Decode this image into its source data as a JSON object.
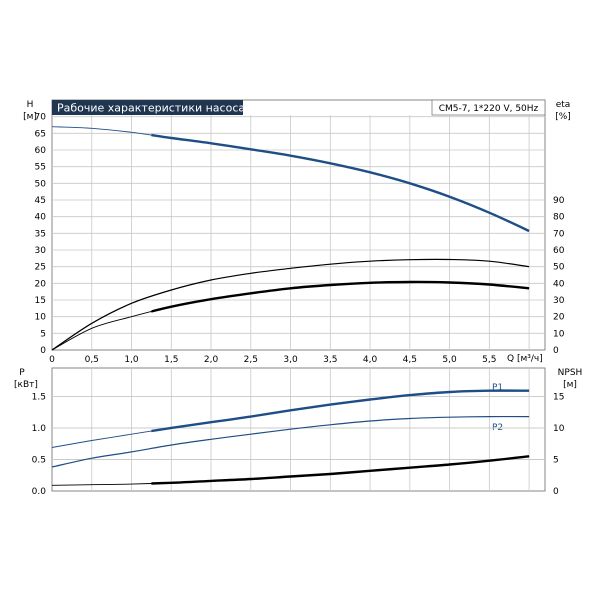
{
  "colors": {
    "blue": "#1f4e87",
    "black": "#000000",
    "title_bg": "#1f3550",
    "grid": "#c8c8c8"
  },
  "header": {
    "title": "Рабочие характеристики насоса",
    "pump_info": "CM5-7, 1*220 V, 50Hz"
  },
  "chart_data": [
    {
      "type": "line",
      "panel": "top",
      "left_axis": {
        "label": "H",
        "unit": "[м]",
        "range": [
          0,
          75
        ],
        "ticks": [
          "0",
          "5",
          "10",
          "15",
          "20",
          "25",
          "30",
          "35",
          "40",
          "45",
          "50",
          "55",
          "60",
          "65",
          "70"
        ]
      },
      "right_axis": {
        "label": "eta",
        "unit": "[%]",
        "range": [
          0,
          150
        ],
        "ticks": [
          "0",
          "10",
          "20",
          "30",
          "40",
          "50",
          "60",
          "70",
          "80",
          "90"
        ]
      },
      "x_axis": {
        "label": "Q [м³/ч]",
        "range": [
          0,
          6.2
        ],
        "ticks": [
          "0",
          "0,5",
          "1,0",
          "1,5",
          "2,0",
          "2,5",
          "3,0",
          "3,5",
          "4,0",
          "4,5",
          "5,0",
          "5,5"
        ]
      },
      "grid": true,
      "series": [
        {
          "axis": "left",
          "color": "#1f4e87",
          "x": [
            0,
            0.5,
            1.0,
            1.5,
            2.0,
            2.5,
            3.0,
            3.5,
            4.0,
            4.5,
            5.0,
            5.5,
            6.0
          ],
          "y": [
            67,
            66.5,
            65.3,
            63.6,
            62.0,
            60.2,
            58.3,
            56.0,
            53.3,
            50.0,
            46.0,
            41.2,
            35.7
          ],
          "thick_from": 1.25
        },
        {
          "axis": "right",
          "color": "#000000",
          "x": [
            0,
            0.5,
            1.0,
            1.5,
            2.0,
            2.5,
            3.0,
            3.5,
            4.0,
            4.5,
            5.0,
            5.5,
            6.0
          ],
          "y": [
            0,
            16,
            28,
            36,
            42,
            46,
            49,
            51.5,
            53.3,
            54.2,
            54.3,
            53.3,
            50
          ],
          "thick_from": null
        },
        {
          "axis": "right",
          "color": "#000000",
          "x": [
            0,
            0.5,
            1.0,
            1.5,
            2.0,
            2.5,
            3.0,
            3.5,
            4.0,
            4.5,
            5.0,
            5.5,
            6.0
          ],
          "y": [
            0,
            13,
            20,
            26,
            30.5,
            34,
            37,
            39,
            40.3,
            40.8,
            40.5,
            39.3,
            37
          ],
          "thick_from": 1.25
        }
      ]
    },
    {
      "type": "line",
      "panel": "bottom",
      "left_axis": {
        "label": "P",
        "unit": "[кВт]",
        "range": [
          0,
          1.95
        ],
        "ticks": [
          "0.0",
          "0.5",
          "1.0",
          "1.5"
        ]
      },
      "right_axis": {
        "label": "NPSH",
        "unit": "[м]",
        "range": [
          0,
          19.5
        ],
        "ticks": [
          "0",
          "5",
          "10",
          "15"
        ]
      },
      "x_axis": {
        "range": [
          0,
          6.2
        ]
      },
      "grid": true,
      "series": [
        {
          "name": "P1",
          "axis": "left",
          "color": "#1f4e87",
          "x": [
            0,
            0.5,
            1.0,
            1.5,
            2.0,
            2.5,
            3.0,
            3.5,
            4.0,
            4.5,
            5.0,
            5.5,
            6.0
          ],
          "y": [
            0.69,
            0.8,
            0.9,
            1.0,
            1.09,
            1.18,
            1.28,
            1.37,
            1.45,
            1.52,
            1.57,
            1.59,
            1.59
          ],
          "thick_from": 1.25
        },
        {
          "name": "P2",
          "axis": "left",
          "color": "#1f4e87",
          "x": [
            0,
            0.5,
            1.0,
            1.5,
            2.0,
            2.5,
            3.0,
            3.5,
            4.0,
            4.5,
            5.0,
            5.5,
            6.0
          ],
          "y": [
            0.38,
            0.52,
            0.62,
            0.73,
            0.82,
            0.9,
            0.98,
            1.05,
            1.11,
            1.15,
            1.17,
            1.18,
            1.18
          ],
          "thick_from": null
        },
        {
          "axis": "right",
          "color": "#000000",
          "x": [
            0,
            0.5,
            1.0,
            1.5,
            2.0,
            2.5,
            3.0,
            3.5,
            4.0,
            4.5,
            5.0,
            5.5,
            6.0
          ],
          "y": [
            0.9,
            1.0,
            1.1,
            1.3,
            1.6,
            1.9,
            2.3,
            2.7,
            3.2,
            3.7,
            4.2,
            4.8,
            5.5
          ],
          "thick_from": 1.25
        }
      ]
    }
  ]
}
